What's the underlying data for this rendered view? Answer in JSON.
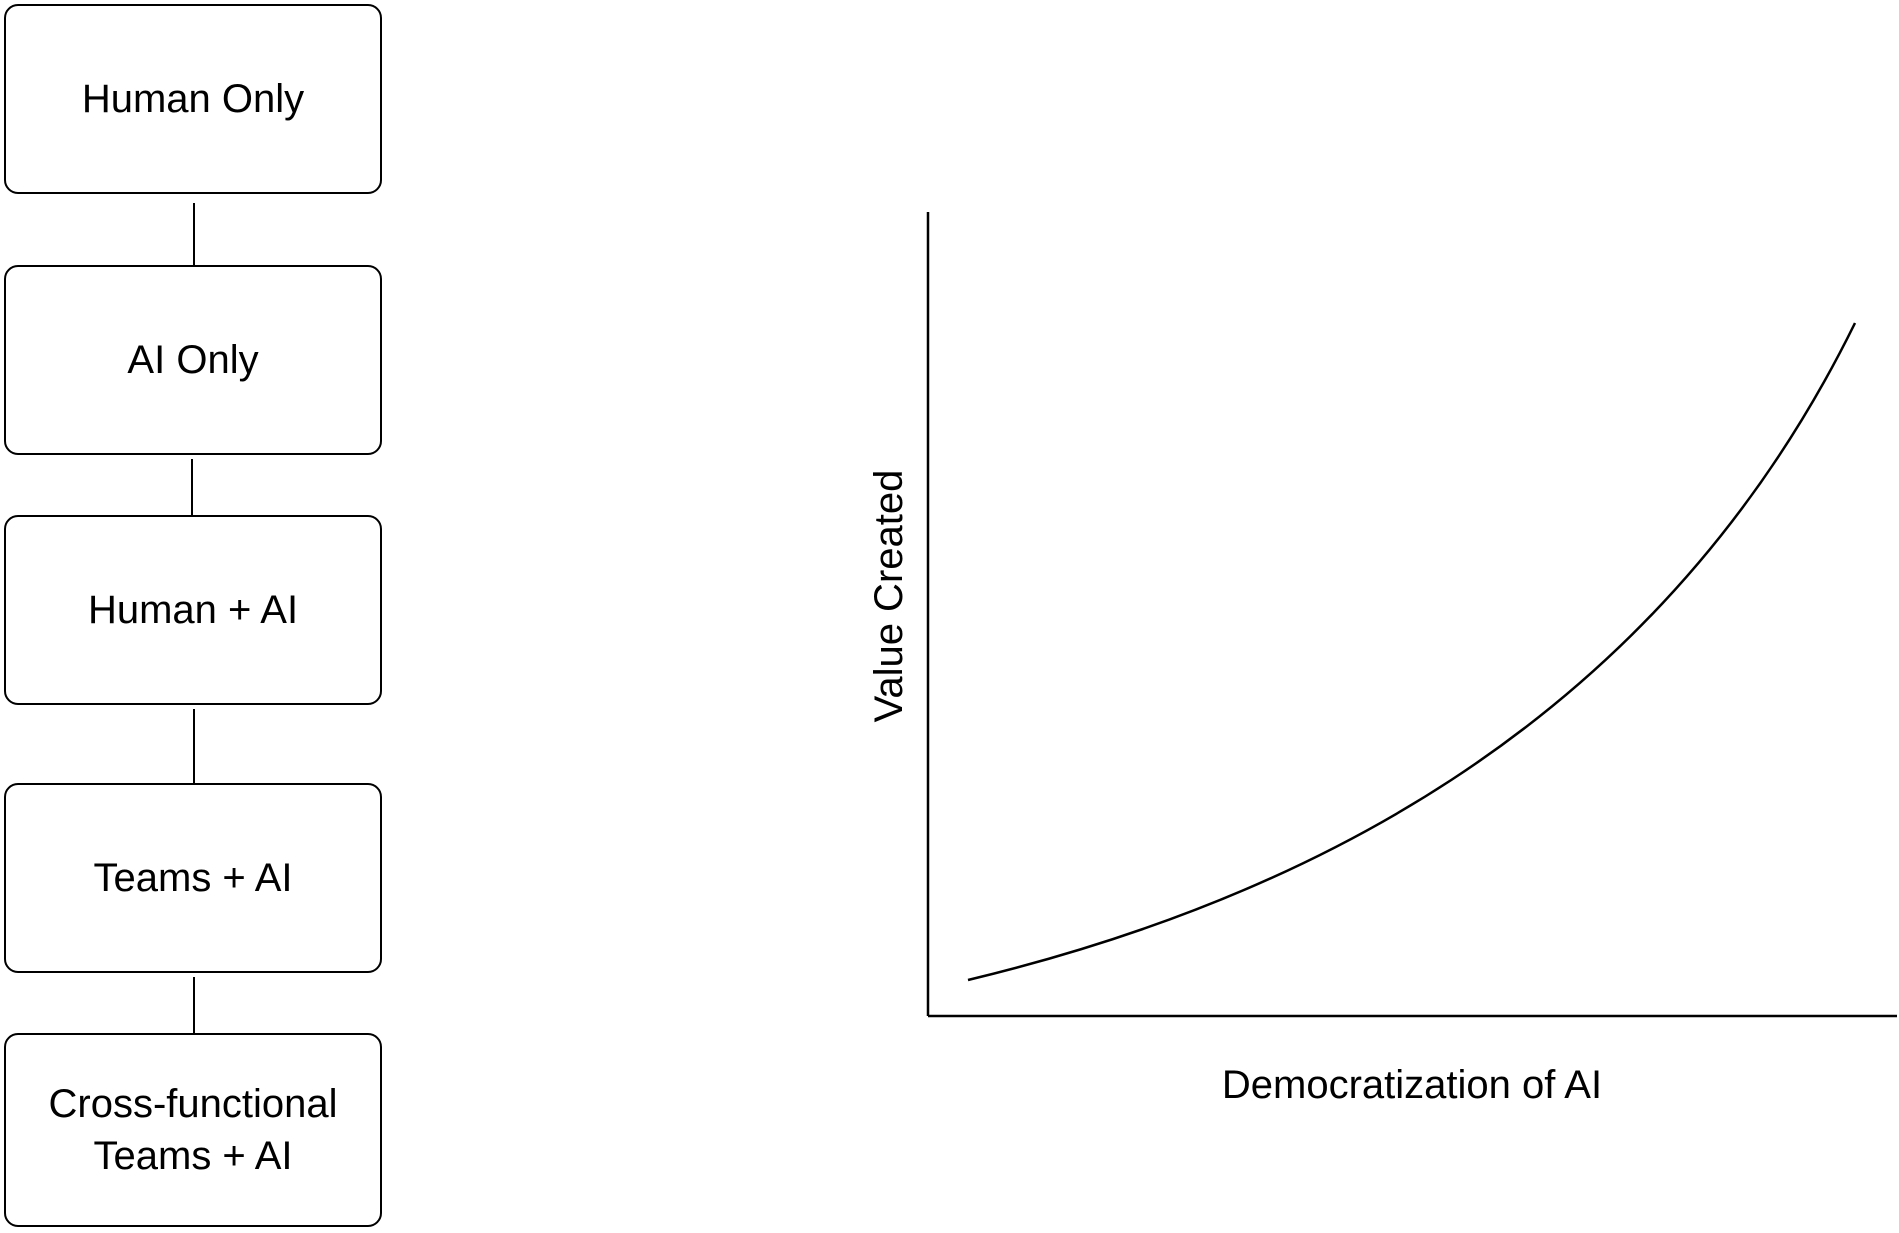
{
  "flow": {
    "boxes": [
      {
        "label": "Human Only"
      },
      {
        "label": "AI Only"
      },
      {
        "label": "Human + AI"
      },
      {
        "label": "Teams + AI"
      },
      {
        "label": "Cross-functional\nTeams + AI"
      }
    ]
  },
  "chart": {
    "xlabel": "Democratization of AI",
    "ylabel": "Value Created",
    "curve": "exponential-increase",
    "line_color": "#000000"
  }
}
